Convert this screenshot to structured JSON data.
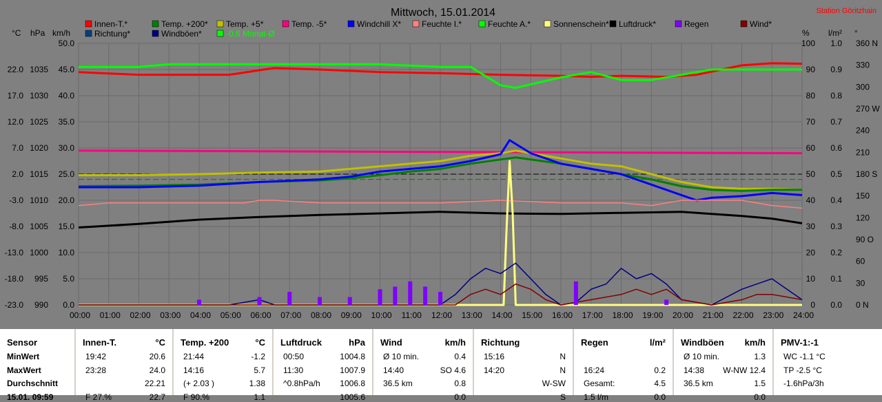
{
  "chart_data": {
    "type": "line",
    "title": "Mittwoch, 15.01.2014",
    "station": "Station Göritzhain",
    "x_ticks": [
      "00:00",
      "01:00",
      "02:00",
      "03:00",
      "04:00",
      "05:00",
      "06:00",
      "07:00",
      "08:00",
      "09:00",
      "10:00",
      "11:00",
      "12:00",
      "13:00",
      "14:00",
      "15:00",
      "16:00",
      "17:00",
      "18:00",
      "19:00",
      "20:00",
      "21:00",
      "22:00",
      "23:00",
      "24:00"
    ],
    "axes": {
      "temp": {
        "unit": "°C",
        "range": [
          -23,
          27
        ],
        "ticks": [
          "22.0",
          "17.0",
          "12.0",
          "7.0",
          "2.0",
          "-3.0",
          "-8.0",
          "-13.0",
          "-18.0",
          "-23.0"
        ]
      },
      "pressure": {
        "unit": "hPa",
        "range": [
          990,
          1040
        ],
        "ticks": [
          "1035",
          "1030",
          "1025",
          "1020",
          "1015",
          "1010",
          "1005",
          "1000",
          "995",
          "990"
        ]
      },
      "wind": {
        "unit": "km/h",
        "range": [
          0,
          50
        ],
        "ticks": [
          "50.0",
          "45.0",
          "40.0",
          "35.0",
          "30.0",
          "25.0",
          "20.0",
          "15.0",
          "10.0",
          "5.0",
          "0.0"
        ]
      },
      "humidity": {
        "unit": "%",
        "range": [
          0,
          100
        ],
        "ticks": [
          "100",
          "90",
          "80",
          "70",
          "60",
          "50",
          "40",
          "30",
          "20",
          "10",
          "0"
        ]
      },
      "rain": {
        "unit": "l/m²",
        "range": [
          0,
          1
        ],
        "ticks": [
          "1.0",
          "0.9",
          "0.8",
          "0.7",
          "0.6",
          "0.5",
          "0.4",
          "0.3",
          "0.2",
          "0.1",
          "0.0"
        ]
      },
      "direction": {
        "unit": "°",
        "range": [
          0,
          360
        ],
        "ticks": [
          "360 N",
          "330",
          "300",
          "270 W",
          "240",
          "210",
          "180 S",
          "150",
          "120",
          "90 O",
          "60",
          "30",
          "0 N"
        ]
      }
    },
    "legend": [
      {
        "name": "Innen-T.*",
        "color": "#ff0000"
      },
      {
        "name": "Temp. +200*",
        "color": "#008000"
      },
      {
        "name": "Temp. +5*",
        "color": "#c0c000"
      },
      {
        "name": "Temp. -5*",
        "color": "#ff0080"
      },
      {
        "name": "Windchill X*",
        "color": "#0000ff"
      },
      {
        "name": "Feuchte I.*",
        "color": "#ff8080"
      },
      {
        "name": "Feuchte A.*",
        "color": "#00ff00"
      },
      {
        "name": "Sonnenschein*",
        "color": "#ffff80"
      },
      {
        "name": "Luftdruck*",
        "color": "#000000"
      },
      {
        "name": "Regen",
        "color": "#8000ff"
      },
      {
        "name": "Wind*",
        "color": "#800000"
      },
      {
        "name": "Richtung*",
        "color": "#004080"
      },
      {
        "name": "Windböen*",
        "color": "#000080"
      },
      {
        "name": "-0.6 Monat-Ø",
        "color": "#00ff00"
      }
    ],
    "series": [
      {
        "name": "Innen-T.*",
        "axis": "temp",
        "x": [
          0,
          2,
          5,
          6.5,
          8,
          10,
          12,
          14,
          16,
          17,
          18,
          19.5,
          20.5,
          22,
          23,
          24
        ],
        "y": [
          21.5,
          21,
          21,
          22.3,
          22,
          21.5,
          21.3,
          21,
          20.8,
          20.6,
          20.8,
          20.6,
          21,
          22.8,
          23.2,
          23.1
        ]
      },
      {
        "name": "Feuchte A.*",
        "axis": "humidity",
        "x": [
          0,
          2,
          3,
          6,
          8,
          10,
          12,
          13,
          14,
          14.5,
          16,
          17,
          18,
          19,
          20,
          21,
          22,
          23,
          24
        ],
        "y": [
          91,
          91,
          92,
          92,
          92,
          92,
          91,
          91,
          84,
          83,
          87,
          89,
          86,
          86,
          88,
          90,
          90,
          90,
          90
        ]
      },
      {
        "name": "Temp. -5*",
        "axis": "temp",
        "x": [
          0,
          24
        ],
        "y": [
          6.5,
          6.0
        ]
      },
      {
        "name": "Temp. +5*",
        "axis": "temp",
        "x": [
          0,
          2,
          4,
          6,
          8,
          9,
          10,
          11,
          12,
          13,
          14,
          14.5,
          15,
          16,
          17,
          18,
          19,
          20,
          21,
          22,
          23,
          24
        ],
        "y": [
          1.8,
          1.8,
          2.0,
          2.3,
          2.5,
          3.0,
          3.5,
          4.0,
          4.5,
          5.5,
          6.0,
          6.5,
          6.0,
          5.0,
          4.0,
          3.5,
          2.0,
          0.5,
          -0.5,
          -0.8,
          -0.8,
          -1.0
        ]
      },
      {
        "name": "Temp. +200*",
        "axis": "temp",
        "x": [
          0,
          2,
          4,
          6,
          8,
          9,
          10,
          11,
          12,
          13,
          14,
          14.5,
          15,
          16,
          17,
          18,
          19,
          20,
          21,
          22,
          23,
          24
        ],
        "y": [
          -0.3,
          -0.2,
          0.0,
          0.5,
          0.8,
          1.2,
          1.8,
          2.5,
          3.0,
          4.0,
          4.8,
          5.2,
          4.8,
          4.0,
          3.0,
          2.0,
          1.0,
          -0.3,
          -1.0,
          -1.2,
          -1.0,
          -1.0
        ]
      },
      {
        "name": "Windchill X*",
        "axis": "temp",
        "x": [
          0,
          2,
          4,
          6,
          8,
          9,
          10,
          11,
          12,
          13,
          14,
          14.3,
          15,
          16,
          17,
          18,
          19,
          20,
          20.5,
          21,
          22,
          23,
          24
        ],
        "y": [
          -0.5,
          -0.5,
          -0.2,
          0.5,
          1.0,
          1.5,
          2.5,
          3.0,
          3.5,
          4.5,
          5.8,
          8.5,
          6.0,
          4.0,
          3.0,
          2.0,
          0.0,
          -2.0,
          -3.0,
          -2.5,
          -2.2,
          -1.6,
          -2.0
        ]
      },
      {
        "name": "Feuchte I.*",
        "axis": "humidity",
        "x": [
          0,
          1,
          3,
          5.5,
          6,
          6.5,
          8,
          10,
          12,
          14,
          16,
          18,
          19,
          20,
          21,
          22,
          23,
          24
        ],
        "y": [
          38,
          39,
          39,
          39,
          40,
          40,
          39,
          39,
          39,
          40,
          39,
          39,
          38,
          40,
          40,
          40,
          38,
          37
        ]
      },
      {
        "name": "Luftdruck*",
        "axis": "pressure",
        "x": [
          0,
          2,
          4,
          6,
          8,
          10,
          12,
          14,
          16,
          18,
          20,
          21,
          22,
          23,
          24
        ],
        "y": [
          1004.8,
          1005.5,
          1006.3,
          1006.8,
          1007.2,
          1007.5,
          1007.8,
          1007.5,
          1007.4,
          1007.6,
          1007.8,
          1007.4,
          1007.0,
          1006.5,
          1005.6
        ]
      },
      {
        "name": "Sonnenschein*",
        "axis": "rain",
        "x": [
          0,
          14.1,
          14.2,
          14.3,
          14.4,
          14.5,
          24
        ],
        "y": [
          0,
          0,
          0.3,
          0.55,
          0.35,
          0,
          0
        ]
      },
      {
        "name": "Windböen*",
        "axis": "wind",
        "x": [
          0,
          5,
          6,
          6.5,
          11,
          12,
          12.5,
          13,
          13.5,
          14,
          14.5,
          15,
          15.5,
          16,
          16.5,
          17,
          17.5,
          18,
          18.5,
          19,
          19.5,
          20,
          21,
          22,
          22.5,
          23,
          23.5,
          24
        ],
        "y": [
          0,
          0,
          1,
          0,
          0,
          0,
          2,
          5,
          7,
          6,
          8,
          5,
          2,
          0,
          0.5,
          3,
          4,
          7,
          5,
          6,
          4,
          1,
          0,
          3,
          4,
          5,
          3,
          1
        ]
      },
      {
        "name": "Wind*",
        "axis": "wind",
        "x": [
          0,
          12.5,
          13,
          13.5,
          14,
          14.5,
          15,
          15.5,
          16,
          17,
          18,
          18.5,
          19,
          19.5,
          20,
          21,
          22,
          22.5,
          23,
          24
        ],
        "y": [
          0,
          0,
          2,
          3,
          2,
          4,
          3,
          1,
          0,
          1,
          2,
          3,
          2,
          3,
          1,
          0,
          1,
          2,
          2,
          1
        ]
      },
      {
        "name": "Regen",
        "axis": "rain",
        "type": "bar",
        "x": [
          4,
          6,
          7,
          8,
          9,
          10,
          10.5,
          11,
          11.5,
          12,
          16.5,
          19.5
        ],
        "y": [
          0.02,
          0.03,
          0.05,
          0.03,
          0.03,
          0.06,
          0.07,
          0.09,
          0.07,
          0.05,
          0.09,
          0.02
        ]
      }
    ],
    "reference_lines": [
      {
        "axis": "temp",
        "value": 2.0,
        "style": "dashed",
        "color": "#000000"
      },
      {
        "axis": "temp",
        "value": 1.0,
        "style": "dashed",
        "color": "#008000"
      }
    ]
  },
  "stats": {
    "columns": [
      {
        "title": "Sensor",
        "unit": "",
        "rows": [
          "MinWert",
          "MaxWert",
          "Durchschnitt",
          "15.01. 09:59"
        ]
      },
      {
        "title": "Innen-T.",
        "unit": "°C",
        "rows": [
          [
            "19:42",
            "20.6"
          ],
          [
            "23:28",
            "24.0"
          ],
          [
            "",
            "22.21"
          ],
          [
            "F 27.%",
            "22.7"
          ]
        ]
      },
      {
        "title": "Temp. +200",
        "unit": "°C",
        "rows": [
          [
            "21:44",
            "-1.2"
          ],
          [
            "14:16",
            "5.7"
          ],
          [
            "(+ 2.03 )",
            "1.38"
          ],
          [
            "F 90.%",
            "1.1"
          ]
        ]
      },
      {
        "title": "Luftdruck",
        "unit": "hPa",
        "rows": [
          [
            "00:50",
            "1004.8"
          ],
          [
            "11:30",
            "1007.9"
          ],
          [
            "^0.8hPa/h",
            "1006.8"
          ],
          [
            "",
            "1005.6"
          ]
        ]
      },
      {
        "title": "Wind",
        "unit": "km/h",
        "rows": [
          [
            "Ø 10 min.",
            "0.4"
          ],
          [
            "14:40",
            "SO 4.6"
          ],
          [
            "36.5 km",
            "0.8"
          ],
          [
            "",
            "0.0"
          ]
        ]
      },
      {
        "title": "Richtung",
        "unit": "",
        "rows": [
          [
            "15:16",
            "N"
          ],
          [
            "14:20",
            "N"
          ],
          [
            "",
            "W-SW"
          ],
          [
            "",
            "S"
          ]
        ]
      },
      {
        "title": "Regen",
        "unit": "l/m²",
        "rows": [
          [
            "",
            ""
          ],
          [
            "16:24",
            "0.2"
          ],
          [
            "Gesamt:",
            "4.5"
          ],
          [
            "1.5 l/m",
            "0.0"
          ]
        ]
      },
      {
        "title": "Windböen",
        "unit": "km/h",
        "rows": [
          [
            "Ø 10 min.",
            "1.3"
          ],
          [
            "14:38",
            "W-NW 12.4"
          ],
          [
            "36.5 km",
            "1.5"
          ],
          [
            "",
            "0.0"
          ]
        ]
      },
      {
        "title": "PMV-1:-1",
        "unit": "",
        "rows": [
          [
            "WC -1.1 °C",
            ""
          ],
          [
            "TP -2.5 °C",
            ""
          ],
          [
            "-1.6hPa/3h",
            ""
          ],
          [
            "",
            ""
          ]
        ]
      }
    ]
  }
}
